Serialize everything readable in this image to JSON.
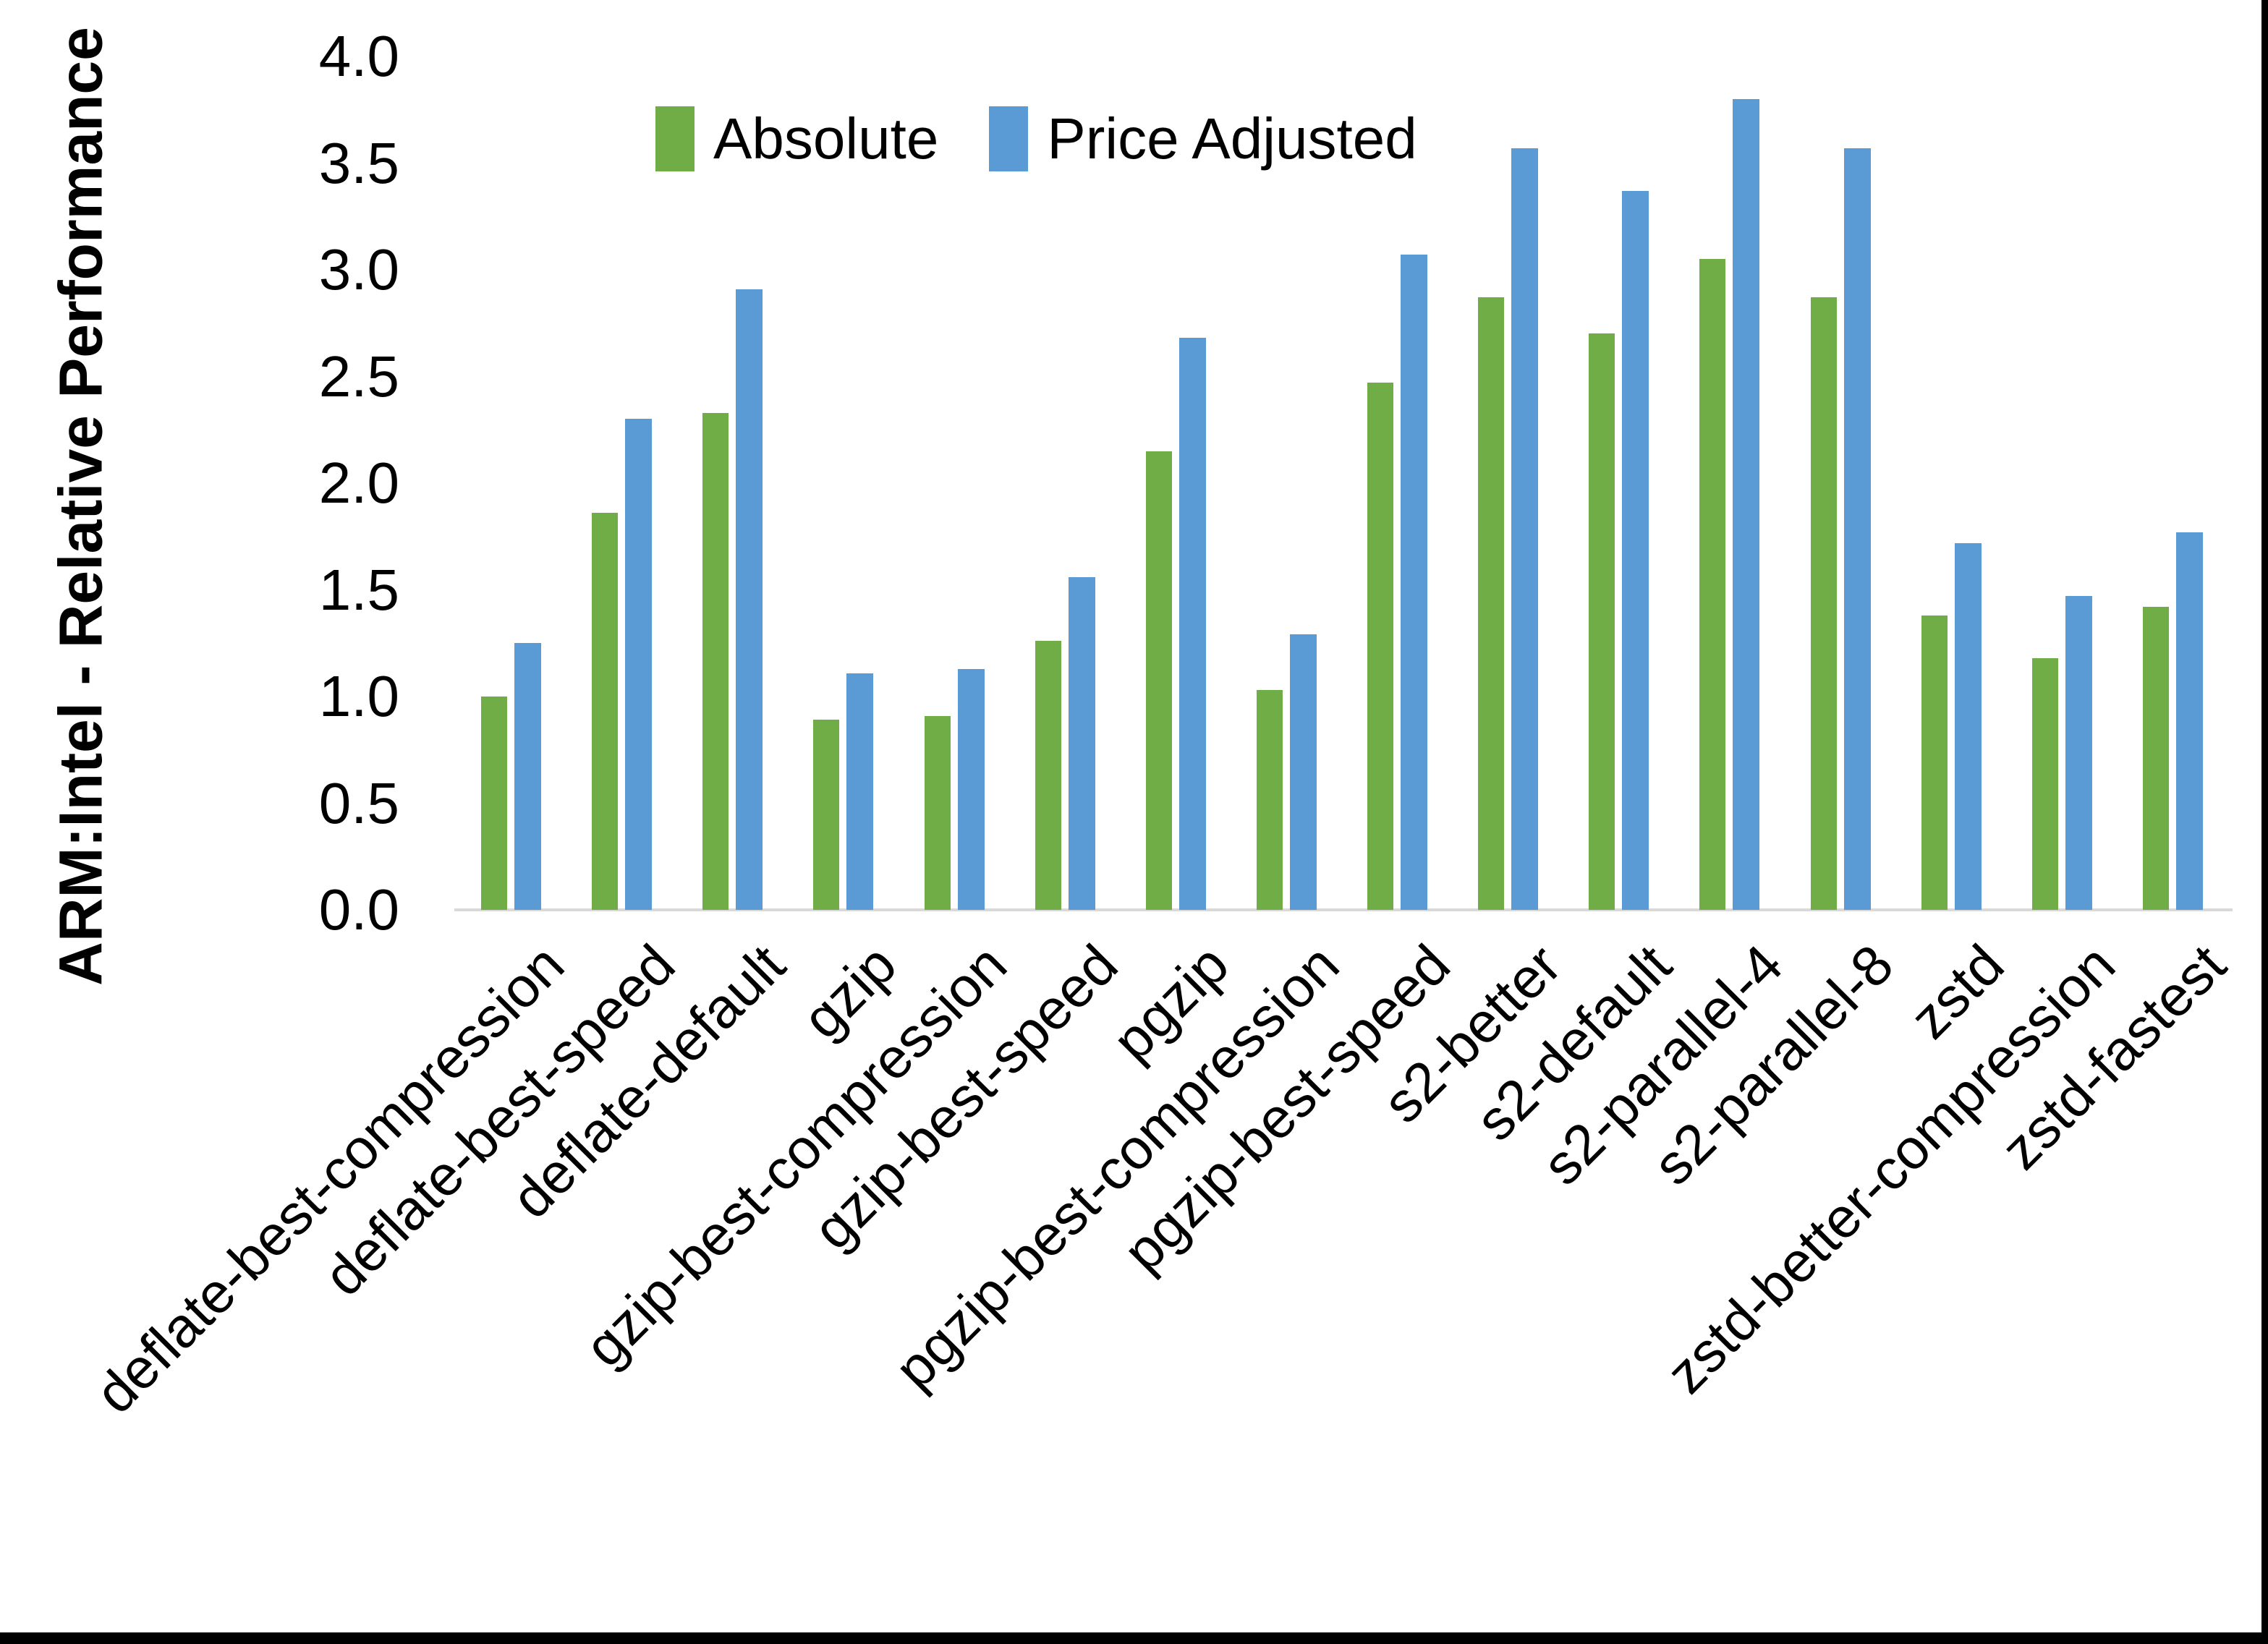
{
  "chart_data": {
    "type": "bar",
    "title": "",
    "xlabel": "",
    "ylabel": "ARM:Intel - Relative Performance",
    "ylim": [
      0.0,
      4.0
    ],
    "ytick_step": 0.5,
    "ytick_labels": [
      "0.0",
      "0.5",
      "1.0",
      "1.5",
      "2.0",
      "2.5",
      "3.0",
      "3.5",
      "4.0"
    ],
    "grid": false,
    "legend_position": "top-center",
    "categories": [
      "deflate-best-compression",
      "deflate-best-speed",
      "deflate-default",
      "gzip",
      "gzip-best-compression",
      "gzip-best-speed",
      "pgzip",
      "pgzip-best-compression",
      "pgzip-best-speed",
      "s2-better",
      "s2-default",
      "s2-parallel-4",
      "s2-parallel-8",
      "zstd",
      "zstd-better-compression",
      "zstd-fastest"
    ],
    "series": [
      {
        "name": "Absolute",
        "color": "#70AD47",
        "values": [
          1.0,
          1.86,
          2.33,
          0.89,
          0.91,
          1.26,
          2.15,
          1.03,
          2.47,
          2.87,
          2.7,
          3.05,
          2.87,
          1.38,
          1.18,
          1.42
        ]
      },
      {
        "name": "Price Adjusted",
        "color": "#5B9BD5",
        "values": [
          1.25,
          2.3,
          2.91,
          1.11,
          1.13,
          1.56,
          2.68,
          1.29,
          3.07,
          3.57,
          3.37,
          3.8,
          3.57,
          1.72,
          1.47,
          1.77
        ]
      }
    ]
  },
  "colors": {
    "axis_line": "#D9D9D9",
    "text": "#000000",
    "frame": "#000000",
    "background": "#FFFFFF"
  }
}
